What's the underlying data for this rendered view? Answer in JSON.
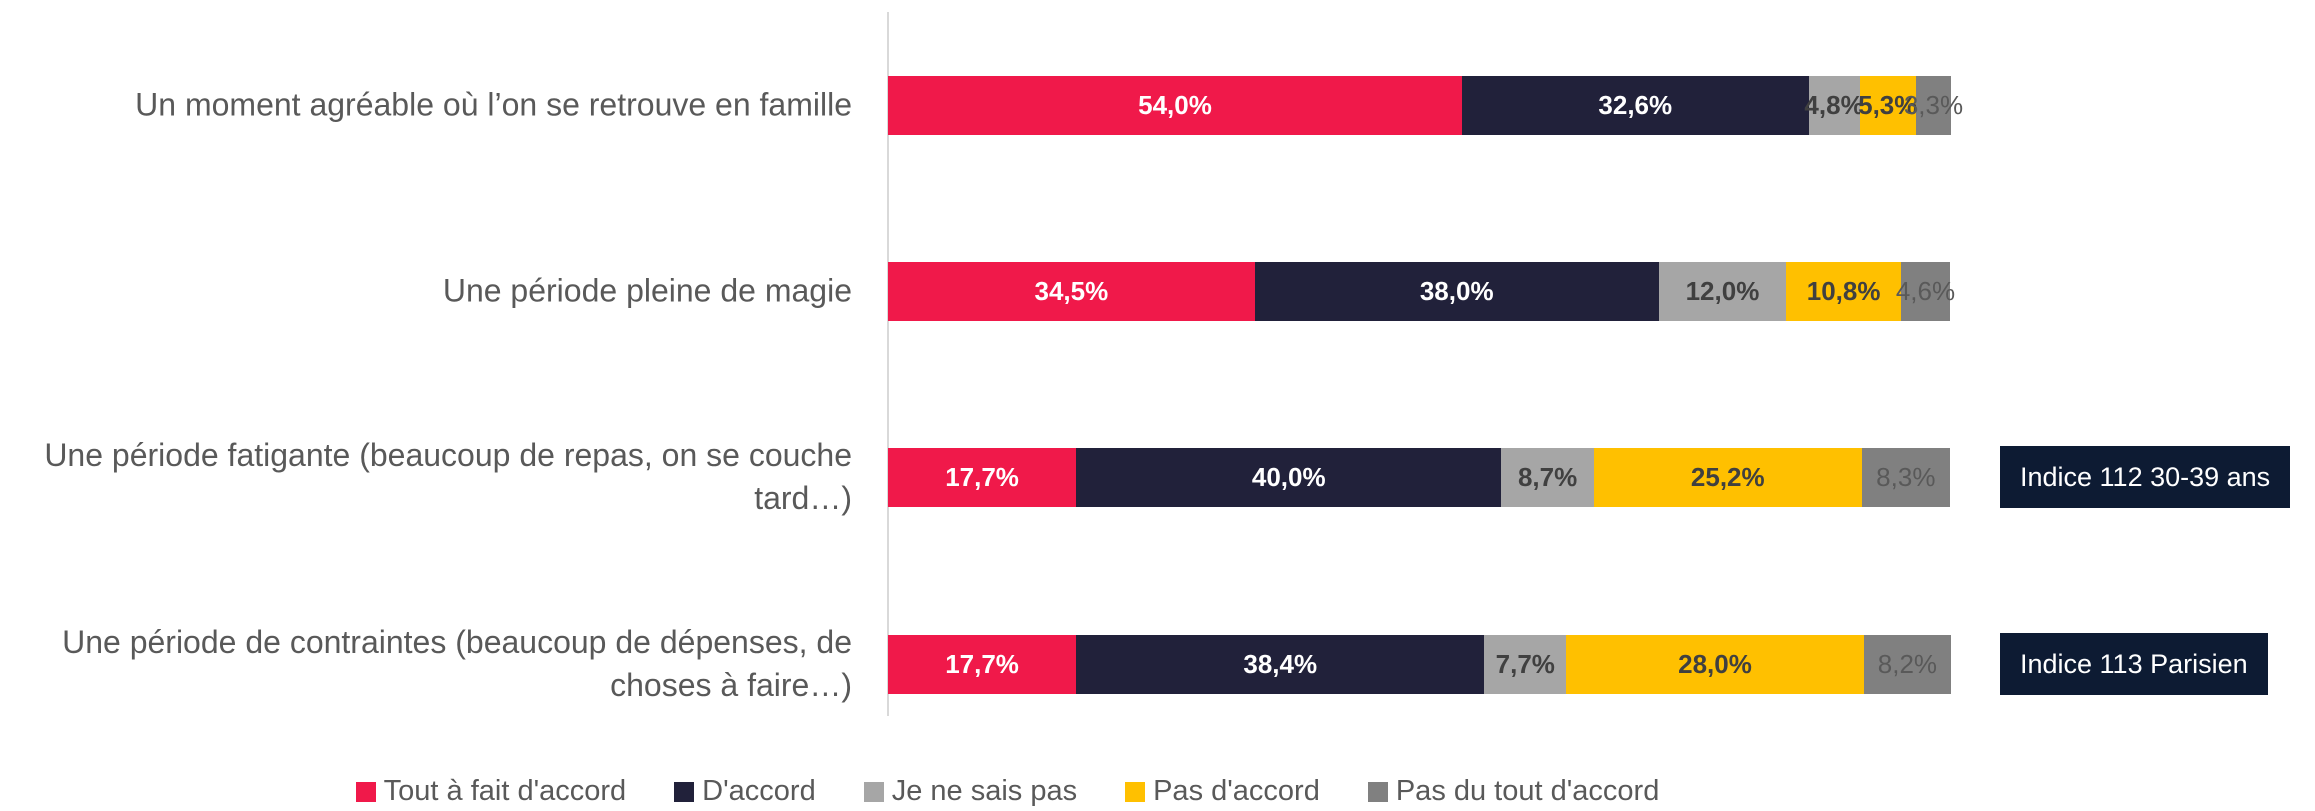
{
  "chart_data": {
    "type": "stacked_bar_horizontal",
    "categories": [
      "Un moment agréable où l’on se retrouve en famille",
      "Une période pleine de magie",
      "Une période fatigante (beaucoup de repas, on se couche tard…)",
      "Une période de contraintes (beaucoup de dépenses, de choses à faire…)"
    ],
    "xlim": [
      0,
      100
    ],
    "series": [
      {
        "name": "Tout à fait d'accord",
        "color": "#f0194a",
        "label_color": "#ffffff",
        "values": [
          54.0,
          34.5,
          17.7,
          17.7
        ],
        "value_labels": [
          "54,0%",
          "34,5%",
          "17,7%",
          "17,7%"
        ]
      },
      {
        "name": "D'accord",
        "color": "#21213a",
        "label_color": "#ffffff",
        "values": [
          32.6,
          38.0,
          40.0,
          38.4
        ],
        "value_labels": [
          "32,6%",
          "38,0%",
          "40,0%",
          "38,4%"
        ]
      },
      {
        "name": "Je ne sais pas",
        "color": "#a6a6a6",
        "label_color": "#404040",
        "values": [
          4.8,
          12.0,
          8.7,
          7.7
        ],
        "value_labels": [
          "4,8%",
          "12,0%",
          "8,7%",
          "7,7%"
        ]
      },
      {
        "name": "Pas d'accord",
        "color": "#ffc000",
        "label_color": "#404040",
        "values": [
          5.3,
          10.8,
          25.2,
          28.0
        ],
        "value_labels": [
          "5,3%",
          "10,8%",
          "25,2%",
          "28,0%"
        ]
      },
      {
        "name": "Pas du tout d'accord",
        "color": "#808080",
        "label_color": "#595959",
        "values": [
          3.3,
          4.6,
          8.3,
          8.2
        ],
        "value_labels": [
          "3,3%",
          "4,6%",
          "8,3%",
          "8,2%"
        ]
      }
    ],
    "annotations": [
      {
        "text": "Indice 112 30-39 ans",
        "category": 2
      },
      {
        "text": "Indice 113 Parisien",
        "category": 3
      }
    ]
  }
}
